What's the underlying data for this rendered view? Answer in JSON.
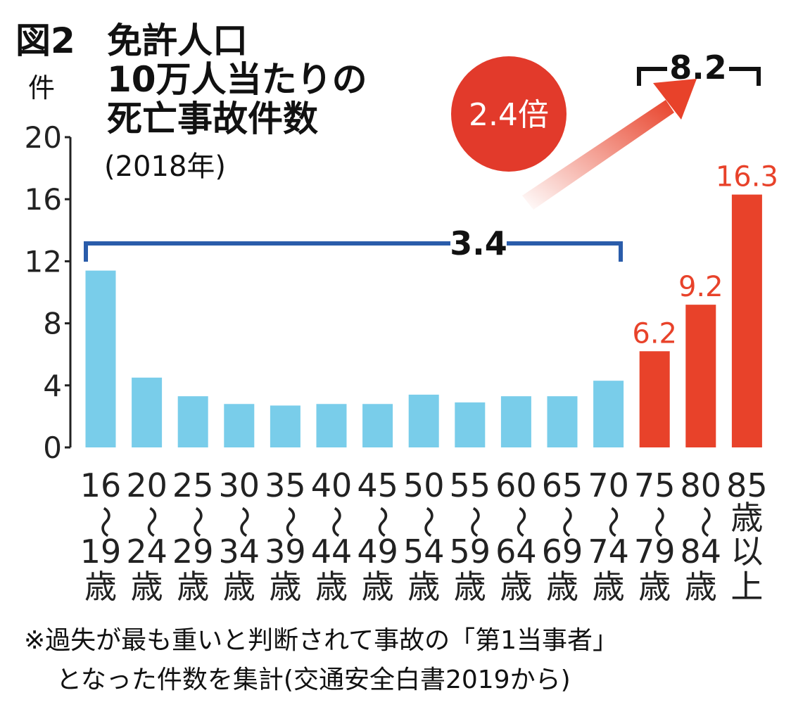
{
  "title": {
    "fig_label": "図2",
    "line1": "免許人口",
    "line2": "10万人当たりの",
    "line3": "死亡事故件数",
    "year": "(2018年)"
  },
  "unit": "件",
  "footnote": {
    "line1": "※過失が最も重いと判断されて事故の「第1当事者」",
    "line2": "となった件数を集計(交通安全白書2019から)"
  },
  "annotations": {
    "bracket_young": "3.4",
    "bracket_old": "8.2",
    "ratio": "2.4倍"
  },
  "colors": {
    "young": "#79cdea",
    "old": "#e8422a",
    "bracket": "#2a5caa",
    "ratio_circle": "#e23a2b"
  },
  "chart_data": {
    "type": "bar",
    "ylim": [
      0,
      20
    ],
    "yticks": [
      "0",
      "4",
      "8",
      "12",
      "16",
      "20"
    ],
    "categories": [
      [
        "16",
        "〜",
        "19",
        "歳"
      ],
      [
        "20",
        "〜",
        "24",
        "歳"
      ],
      [
        "25",
        "〜",
        "29",
        "歳"
      ],
      [
        "30",
        "〜",
        "34",
        "歳"
      ],
      [
        "35",
        "〜",
        "39",
        "歳"
      ],
      [
        "40",
        "〜",
        "44",
        "歳"
      ],
      [
        "45",
        "〜",
        "49",
        "歳"
      ],
      [
        "50",
        "〜",
        "54",
        "歳"
      ],
      [
        "55",
        "〜",
        "59",
        "歳"
      ],
      [
        "60",
        "〜",
        "64",
        "歳"
      ],
      [
        "65",
        "〜",
        "69",
        "歳"
      ],
      [
        "70",
        "〜",
        "74",
        "歳"
      ],
      [
        "75",
        "〜",
        "79",
        "歳"
      ],
      [
        "80",
        "〜",
        "84",
        "歳"
      ],
      [
        "85",
        "歳",
        "以",
        "上"
      ]
    ],
    "values": [
      11.4,
      4.5,
      3.3,
      2.8,
      2.7,
      2.8,
      2.8,
      3.4,
      2.9,
      3.3,
      3.3,
      4.3,
      6.2,
      9.2,
      16.3
    ],
    "highlight_from_index": 12,
    "data_labels": [
      "",
      "",
      "",
      "",
      "",
      "",
      "",
      "",
      "",
      "",
      "",
      "",
      "6.2",
      "9.2",
      "16.3"
    ]
  }
}
